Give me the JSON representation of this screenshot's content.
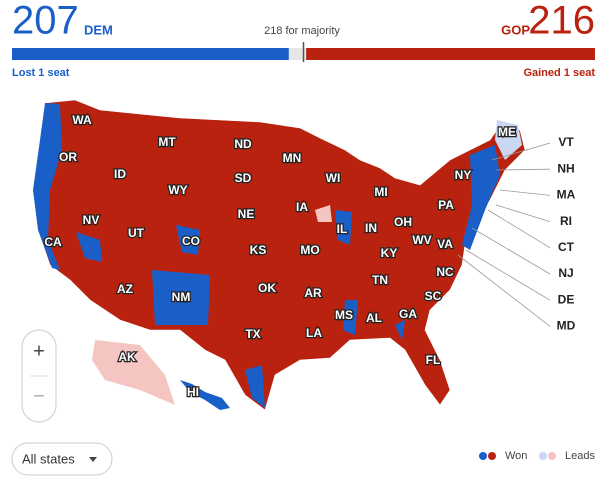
{
  "header": {
    "dem": {
      "seats": 207,
      "label": "DEM",
      "change": "Lost 1 seat"
    },
    "gop": {
      "seats": 216,
      "label": "GOP",
      "change": "Gained 1 seat"
    },
    "majority": {
      "value": 218,
      "label": "218 for majority"
    }
  },
  "map": {
    "state_labels": [
      "WA",
      "OR",
      "CA",
      "NV",
      "ID",
      "MT",
      "WY",
      "UT",
      "CO",
      "AZ",
      "NM",
      "ND",
      "SD",
      "NE",
      "KS",
      "OK",
      "TX",
      "MN",
      "IA",
      "MO",
      "AR",
      "LA",
      "WI",
      "IL",
      "MS",
      "AL",
      "TN",
      "KY",
      "IN",
      "MI",
      "OH",
      "GA",
      "FL",
      "SC",
      "NC",
      "VA",
      "WV",
      "PA",
      "NY",
      "ME",
      "AK",
      "HI"
    ],
    "side_labels": [
      "VT",
      "NH",
      "MA",
      "RI",
      "CT",
      "NJ",
      "DE",
      "MD"
    ],
    "zoom": [
      "+",
      "−"
    ],
    "filter": "All states",
    "legend": [
      "Won",
      "Leads"
    ]
  }
}
